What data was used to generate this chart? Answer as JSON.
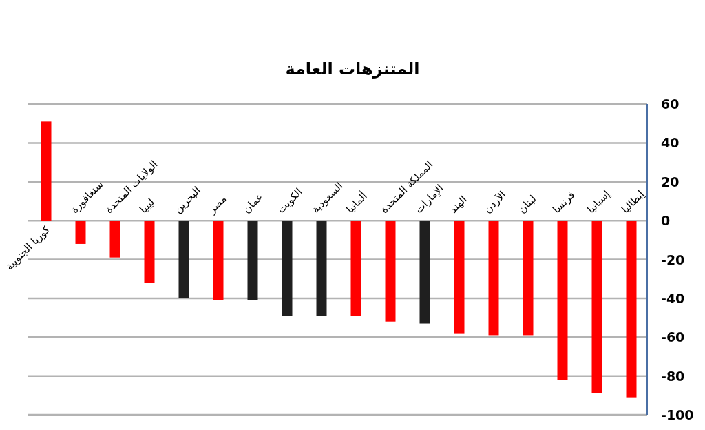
{
  "chart_data": {
    "type": "bar",
    "title": "المتنزهات العامة",
    "categories": [
      "كوريا الجنوبية",
      "سنغافورة",
      "الولايات المتحدة",
      "ليبيا",
      "البحرين",
      "مصر",
      "عمان",
      "الكويت",
      "السعودية",
      "ألمانيا",
      "المملكة المتحدة",
      "الإمارات",
      "الهند",
      "الأردن",
      "لبنان",
      "فرنسا",
      "إسبانيا",
      "إيطاليا"
    ],
    "values": [
      51,
      -12,
      -19,
      -32,
      -40,
      -41,
      -41,
      -49,
      -49,
      -49,
      -52,
      -53,
      -58,
      -59,
      -59,
      -82,
      -89,
      -91
    ],
    "colors": [
      "#ff0000",
      "#ff0000",
      "#ff0000",
      "#ff0000",
      "#1f1f1f",
      "#ff0000",
      "#1f1f1f",
      "#1f1f1f",
      "#1f1f1f",
      "#ff0000",
      "#ff0000",
      "#1f1f1f",
      "#ff0000",
      "#ff0000",
      "#ff0000",
      "#ff0000",
      "#ff0000",
      "#ff0000"
    ],
    "ylim": [
      -100,
      60
    ],
    "yticks": [
      -100,
      -80,
      -60,
      -40,
      -20,
      0,
      20,
      40,
      60
    ],
    "grid": "y"
  }
}
